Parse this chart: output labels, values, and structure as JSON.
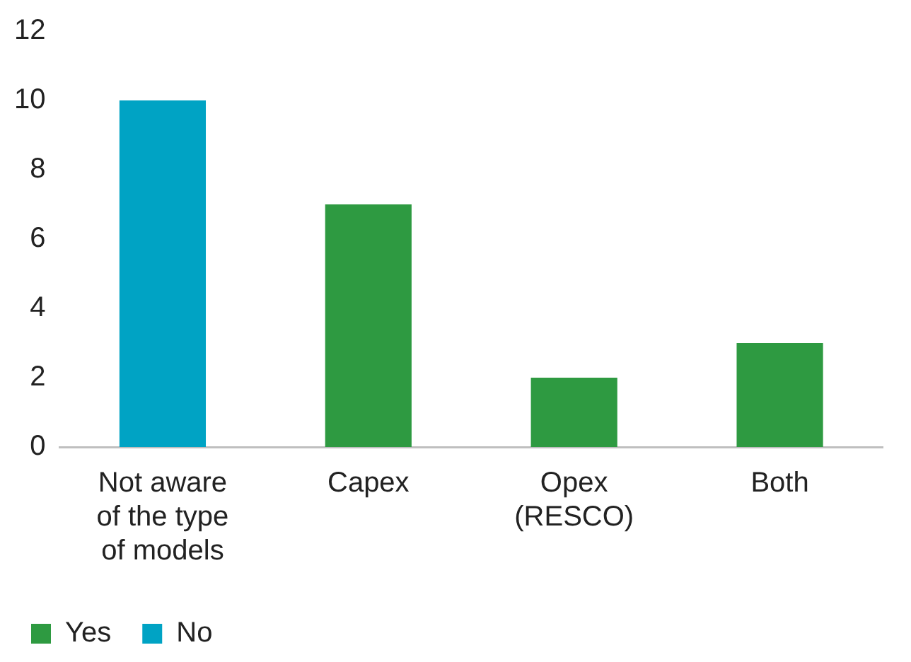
{
  "chart_data": {
    "type": "bar",
    "categories": [
      "Not aware of the type of models",
      "Capex",
      "Opex (RESCO)",
      "Both"
    ],
    "series": [
      {
        "name": "Yes",
        "color": "#2e9a41",
        "values": [
          null,
          7,
          2,
          3
        ]
      },
      {
        "name": "No",
        "color": "#00a3c4",
        "values": [
          10,
          null,
          null,
          null
        ]
      }
    ],
    "ylim": [
      0,
      12
    ],
    "yticks": [
      0,
      2,
      4,
      6,
      8,
      10,
      12
    ],
    "grid": false,
    "legend": "bottom left"
  }
}
